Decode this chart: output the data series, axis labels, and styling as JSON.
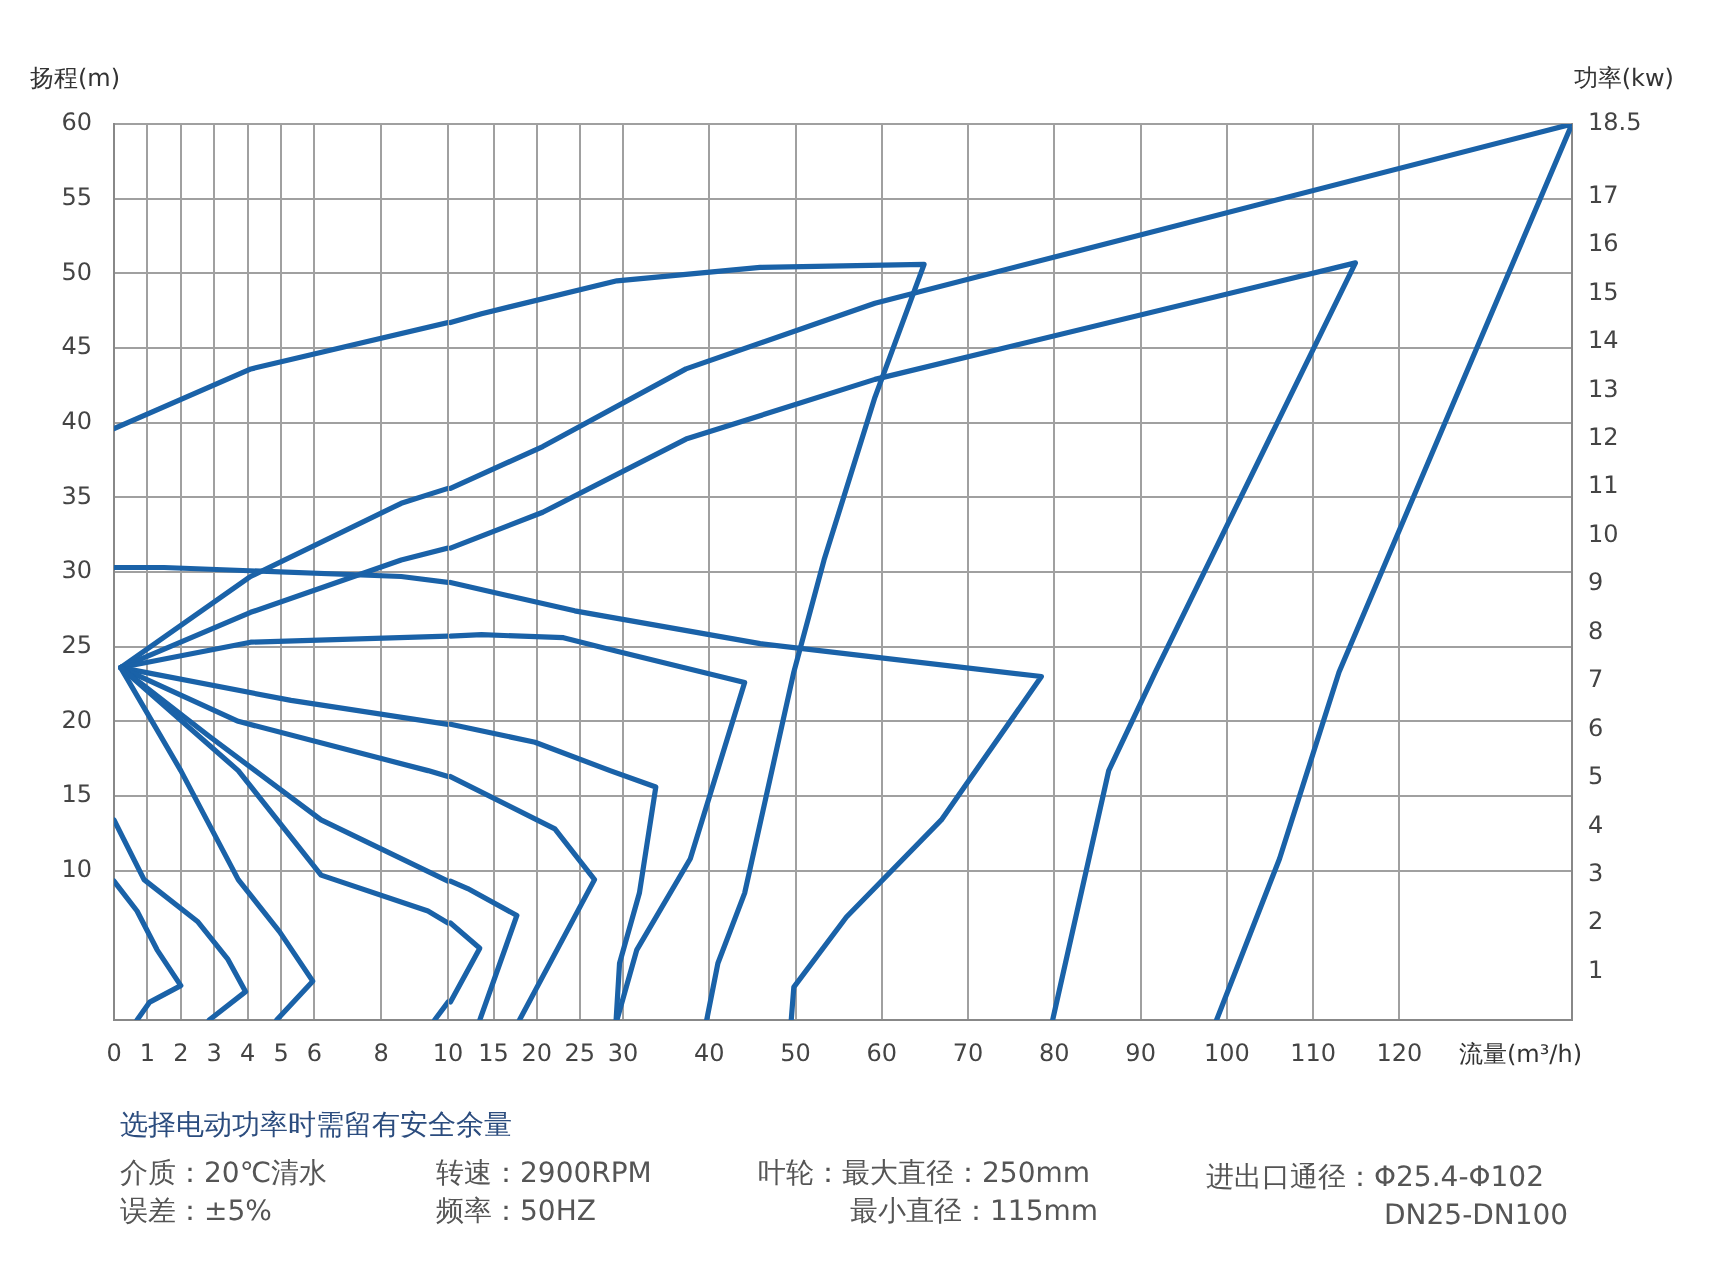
{
  "chart_data": [
    {
      "type": "line",
      "xlim": [
        0,
        10
      ],
      "xticks": [
        0,
        1,
        2,
        3,
        4,
        5,
        6,
        8,
        10
      ],
      "ylim": [
        0,
        60
      ],
      "yticks": [
        10,
        15,
        20,
        25,
        30,
        35,
        40,
        45,
        50,
        55,
        60
      ],
      "tick_labels": "x",
      "grid": true,
      "marker": "none",
      "line_style": "solid",
      "series": [
        {
          "color": "#1a62a8",
          "x": [
            0,
            0.69,
            1.29,
            2,
            1.07,
            0.69
          ],
          "values": [
            9.3,
            7.3,
            4.7,
            2.3,
            1.2,
            0
          ]
        },
        {
          "color": "#1a62a8",
          "x": [
            0,
            0.9,
            2.5,
            3.4,
            3.94,
            2.85
          ],
          "values": [
            13.4,
            9.4,
            6.6,
            4.1,
            1.9,
            0
          ]
        },
        {
          "color": "#1a62a8",
          "x": [
            0.2,
            2,
            3.72,
            4.96,
            5.95,
            4.87
          ],
          "values": [
            23.6,
            16.7,
            9.4,
            5.9,
            2.6,
            0
          ]
        },
        {
          "color": "#1a62a8",
          "x": [
            0.2,
            3.72,
            6.2,
            9.4,
            10
          ],
          "values": [
            23.6,
            16.7,
            9.7,
            7.3,
            6.5
          ]
        },
        {
          "color": "#1a62a8",
          "x": [
            10,
            9.6
          ],
          "values": [
            1.2,
            0
          ]
        },
        {
          "color": "#1a62a8",
          "x": [
            0.2,
            2.85,
            6.2,
            10
          ],
          "values": [
            23.6,
            19,
            13.4,
            9.3
          ]
        },
        {
          "color": "#1a62a8",
          "x": [
            0.2,
            3.72,
            9.4,
            10
          ],
          "values": [
            23.6,
            20,
            16.7,
            16.3
          ]
        },
        {
          "color": "#1a62a8",
          "x": [
            0.2,
            5.3,
            10
          ],
          "values": [
            23.6,
            21.4,
            19.8
          ]
        },
        {
          "color": "#1a62a8",
          "x": [
            0.2,
            4.09,
            10
          ],
          "values": [
            23.6,
            25.3,
            25.7
          ]
        },
        {
          "color": "#1a62a8",
          "x": [
            0,
            1.5,
            8.6,
            10
          ],
          "values": [
            30.3,
            30.3,
            29.7,
            29.3
          ]
        },
        {
          "color": "#1a62a8",
          "x": [
            0.2,
            4.09,
            8.6,
            10
          ],
          "values": [
            23.6,
            27.3,
            30.8,
            31.6
          ]
        },
        {
          "color": "#1a62a8",
          "x": [
            0.2,
            4.09,
            8.6,
            10
          ],
          "values": [
            23.6,
            29.7,
            34.6,
            35.6
          ]
        },
        {
          "color": "#1a62a8",
          "x": [
            0,
            4.1,
            10
          ],
          "values": [
            39.6,
            43.6,
            46.7
          ]
        }
      ]
    },
    {
      "type": "line",
      "xlabel": "流量(m³/h)",
      "ylabel": "扬程(m)",
      "y2label": "功率(kw)",
      "xlim": [
        -29,
        140
      ],
      "xticks": [
        15,
        20,
        25,
        30,
        40,
        50,
        60,
        70,
        80,
        90,
        100,
        110,
        120
      ],
      "ylim": [
        0,
        60
      ],
      "yticks": [
        10,
        15,
        20,
        25,
        30,
        35,
        40,
        45,
        50,
        55,
        60
      ],
      "y2lim": [
        0,
        18.5
      ],
      "y2ticks": [
        1,
        2,
        3,
        4,
        5,
        6,
        7,
        8,
        9,
        10,
        11,
        12,
        13,
        14,
        15,
        16,
        17,
        18.5
      ],
      "grid": true,
      "marker": "none",
      "line_style": "solid",
      "series": [
        {
          "color": "#1a62a8",
          "x": [
            10,
            13.4,
            10
          ],
          "values": [
            6.5,
            4.8,
            1.2
          ]
        },
        {
          "color": "#1a62a8",
          "x": [
            10,
            12,
            17.7,
            13.4
          ],
          "values": [
            9.3,
            8.8,
            7,
            0
          ]
        },
        {
          "color": "#1a62a8",
          "x": [
            10,
            22.1,
            26.7,
            18
          ],
          "values": [
            16.3,
            12.8,
            9.4,
            0
          ]
        },
        {
          "color": "#1a62a8",
          "x": [
            10,
            19.8,
            28.5,
            33.8,
            31.9,
            29.6,
            29.2
          ],
          "values": [
            19.8,
            18.6,
            16.7,
            15.6,
            8.5,
            3.8,
            0
          ]
        },
        {
          "color": "#1a62a8",
          "x": [
            10,
            13.6,
            23.1,
            29.3,
            44.1,
            37.8,
            31.6,
            29.3
          ],
          "values": [
            25.7,
            25.8,
            25.6,
            24.7,
            22.6,
            10.8,
            4.7,
            0
          ]
        },
        {
          "color": "#1a62a8",
          "x": [
            10,
            24.4,
            45.9,
            59.2,
            78.5,
            66.9,
            55.9,
            49.8,
            49.5
          ],
          "values": [
            29.3,
            27.4,
            25.2,
            24.3,
            23,
            13.4,
            6.9,
            2.2,
            0
          ]
        },
        {
          "color": "#1a62a8",
          "x": [
            10,
            13.6,
            29.3,
            45.9,
            64.9,
            59.2,
            53.3,
            49.8,
            44.1,
            41,
            39.7
          ],
          "values": [
            46.7,
            47.3,
            49.5,
            50.4,
            50.6,
            41.7,
            30.8,
            23.3,
            8.5,
            3.8,
            0
          ]
        },
        {
          "color": "#1a62a8",
          "x": [
            10,
            20.7,
            37.3,
            59.2,
            114.9,
            91.7,
            86.3,
            79.8
          ],
          "values": [
            31.6,
            34,
            38.9,
            42.9,
            50.7,
            23.3,
            16.7,
            0
          ]
        },
        {
          "color": "#1a62a8",
          "x": [
            10,
            20.7,
            37.3,
            59.2,
            140,
            113,
            106.1,
            98.8
          ],
          "values": [
            35.6,
            38.4,
            43.6,
            48,
            60,
            23.3,
            10.8,
            0
          ]
        }
      ]
    },
    {
      "type": "other",
      "title": "选择电动功率时需留有安全余量",
      "annotations": [
        "介质：20℃清水",
        "误差：±5%",
        "转速：2900RPM",
        "频率：50HZ",
        "叶轮：最大直径：250mm",
        "最小直径：115mm",
        "进出口通径：Φ25.4-Φ102",
        "DN25-DN100"
      ]
    }
  ]
}
